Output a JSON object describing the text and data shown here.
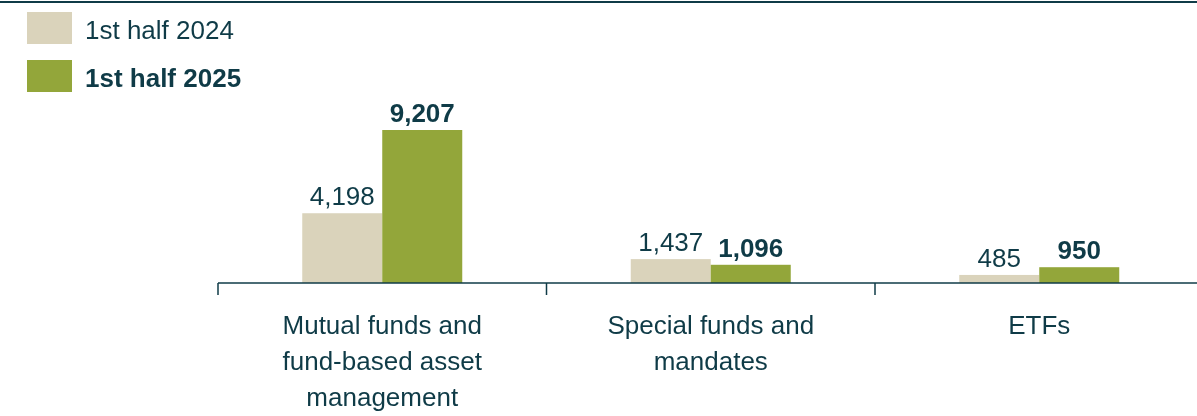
{
  "chart_data": {
    "type": "bar",
    "categories": [
      "Mutual funds and fund-based asset management",
      "Special funds and mandates",
      "ETFs"
    ],
    "series": [
      {
        "name": "1st half 2024",
        "color": "#dad3bb",
        "values": [
          4198,
          1437,
          485
        ],
        "value_labels": [
          "4,198",
          "1,437",
          "485"
        ]
      },
      {
        "name": "1st half 2025",
        "color": "#93a63a",
        "values": [
          9207,
          1096,
          950
        ],
        "value_labels": [
          "9,207",
          "1,096",
          "950"
        ]
      }
    ],
    "legend": "top left"
  }
}
